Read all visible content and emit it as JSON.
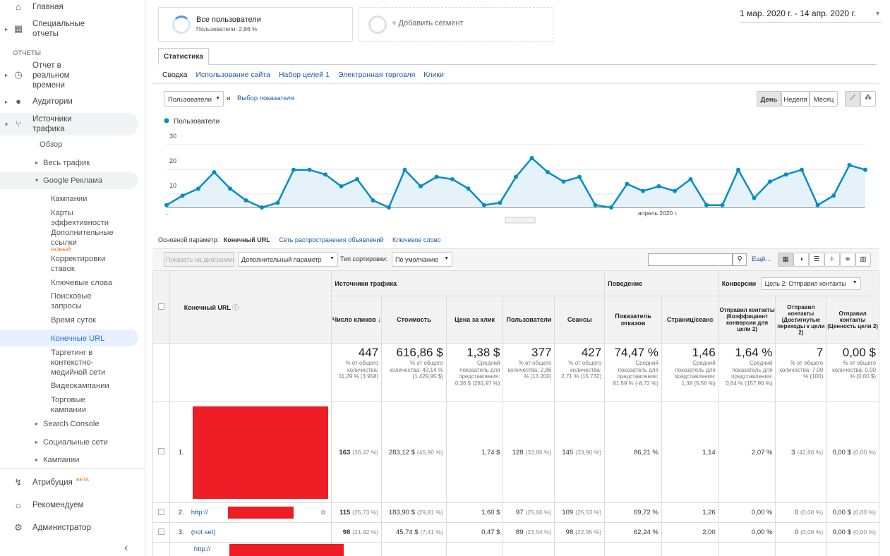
{
  "sidebar": {
    "home": "Главная",
    "custom": "Специальные отчеты",
    "reports_header": "ОТЧЕТЫ",
    "realtime": "Отчет в реальном времени",
    "audience": "Аудитории",
    "acquisition": "Источники трафика",
    "overview": "Обзор",
    "all_traffic": "Весь трафик",
    "google_ads": "Google Реклама",
    "ads_items": [
      "Кампании",
      "Карты эффективности",
      "Дополнительные ссылки",
      "Корректировки ставок",
      "Ключевые слова",
      "Поисковые запросы",
      "Время суток",
      "Конечные URL",
      "Таргетинг в контекстно-медийной сети",
      "Видеокампании",
      "Торговые кампании"
    ],
    "new_badge": "НОВЫЙ",
    "search_console": "Search Console",
    "social": "Социальные сети",
    "campaigns": "Кампании",
    "attribution": "Атрибуция",
    "beta_badge": "БЕТА",
    "discover": "Рекомендуем",
    "admin": "Администратор",
    "collapse": "‹"
  },
  "segments": {
    "all_users": "Все пользователи",
    "all_users_sub": "Пользователи: 2,86 %",
    "all_users_ratio": 0.0286,
    "add": "+ Добавить сегмент"
  },
  "date_range": "1 мар. 2020 г. - 14 апр. 2020 г.",
  "tab": "Статистика",
  "subtabs": [
    "Сводка",
    "Использование сайта",
    "Набор целей 1",
    "Электронная торговля",
    "Клики"
  ],
  "metric_select": "Пользователи",
  "and_label": "и",
  "select_metric": "Выбор показателя",
  "period_buttons": [
    "День",
    "Неделя",
    "Месяц"
  ],
  "chart_data": {
    "type": "line",
    "series": [
      {
        "name": "Пользователи",
        "values": [
          1,
          5,
          8,
          15,
          8,
          3,
          0,
          2,
          16,
          16,
          14,
          9,
          12,
          3,
          0,
          16,
          9,
          13,
          12,
          8,
          1,
          2,
          13,
          21,
          15,
          11,
          13,
          1,
          0,
          10,
          7,
          9,
          7,
          12,
          1,
          1,
          16,
          4,
          11,
          14,
          16,
          1,
          5,
          18,
          16
        ]
      }
    ],
    "ylim": [
      0,
      30
    ],
    "yticks": [
      "30",
      "20",
      "10"
    ],
    "xlabel_mid": "апрель 2020 г.",
    "xlabel_left": "...",
    "color": "#058dc7"
  },
  "dims": {
    "label": "Основной параметр:",
    "active": "Конечный URL",
    "others": [
      "Сеть распространения объявлений",
      "Ключевое слово"
    ]
  },
  "toolbar": {
    "plot_rows": "Показать на диаграмме",
    "secondary": "Дополнительный параметр",
    "sort_label": "Тип сортировки:",
    "sort_value": "По умолчанию",
    "more": "Ещё..."
  },
  "table": {
    "url_header": "Конечный URL",
    "group_acq": "Источники трафика",
    "group_beh": "Поведение",
    "group_conv": "Конверсии",
    "goal_select": "Цель 2: Отправил контакты",
    "columns": [
      "Число кликов",
      "Стоимость",
      "Цена за клик",
      "Пользователи",
      "Сеансы",
      "Показатель отказов",
      "Страниц/сеанс",
      "Отправил контакты (Коэффициент конверсии для цели 2)",
      "Отправил контакты (Достигнутые переходы к цели 2)",
      "Отправил контакты (Ценность цели 2)"
    ],
    "totals": [
      {
        "v": "447",
        "s": "% от общего количества: 11,29 % (3 958)"
      },
      {
        "v": "616,86 $",
        "s": "% от общего количества: 43,14 % (1 429,95 $)"
      },
      {
        "v": "1,38 $",
        "s": "Средний показатель для представления: 0,36 $ (281,97 %)"
      },
      {
        "v": "377",
        "s": "% от общего количества: 2,86 % (13 200)"
      },
      {
        "v": "427",
        "s": "% от общего количества: 2,71 % (15 732)"
      },
      {
        "v": "74,47 %",
        "s": "Средний показатель для представления: 81,59 % (-8,72 %)"
      },
      {
        "v": "1,46",
        "s": "Средний показатель для представления: 1,38 (5,56 %)"
      },
      {
        "v": "1,64 %",
        "s": "Средний показатель для представления: 0,64 % (157,90 %)"
      },
      {
        "v": "7",
        "s": "% от общего количества: 7,00 % (100)"
      },
      {
        "v": "0,00 $",
        "s": "% от общего количества: 0,00 % (0,00 $)"
      }
    ],
    "rows": [
      {
        "n": "1.",
        "url": "",
        "cells": [
          [
            "163",
            "(36,47 %)"
          ],
          [
            "283,12 $",
            "(45,90 %)"
          ],
          [
            "1,74 $",
            ""
          ],
          [
            "128",
            "(33,86 %)"
          ],
          [
            "145",
            "(33,96 %)"
          ],
          [
            "86,21 %",
            ""
          ],
          [
            "1,14",
            ""
          ],
          [
            "2,07 %",
            ""
          ],
          [
            "3",
            "(42,86 %)"
          ],
          [
            "0,00 $",
            "(0,00 %)"
          ]
        ]
      },
      {
        "n": "2.",
        "url": "http://",
        "cells": [
          [
            "115",
            "(25,73 %)"
          ],
          [
            "183,90 $",
            "(29,81 %)"
          ],
          [
            "1,60 $",
            ""
          ],
          [
            "97",
            "(25,66 %)"
          ],
          [
            "109",
            "(25,53 %)"
          ],
          [
            "69,72 %",
            ""
          ],
          [
            "1,26",
            ""
          ],
          [
            "0,00 %",
            ""
          ],
          [
            "0",
            "(0,00 %)"
          ],
          [
            "0,00 $",
            "(0,00 %)"
          ]
        ]
      },
      {
        "n": "3.",
        "url": "(not set)",
        "cells": [
          [
            "98",
            "(21,92 %)"
          ],
          [
            "45,74 $",
            "(7,41 %)"
          ],
          [
            "0,47 $",
            ""
          ],
          [
            "89",
            "(23,54 %)"
          ],
          [
            "98",
            "(22,95 %)"
          ],
          [
            "62,24 %",
            ""
          ],
          [
            "2,00",
            ""
          ],
          [
            "0,00 %",
            ""
          ],
          [
            "0",
            "(0,00 %)"
          ],
          [
            "0,00 $",
            "(0,00 %)"
          ]
        ]
      },
      {
        "n": "",
        "url": "http://",
        "cells": []
      }
    ]
  }
}
